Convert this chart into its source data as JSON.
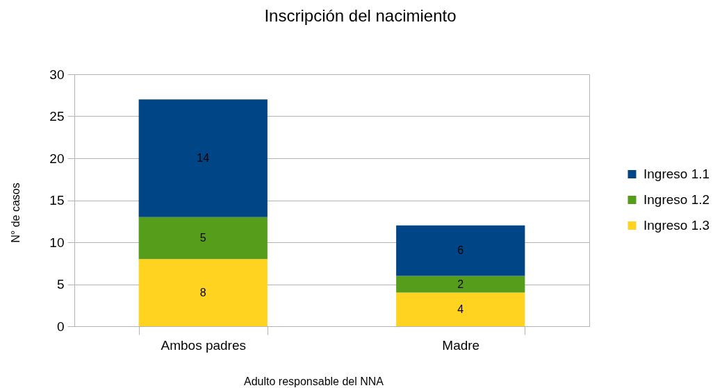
{
  "chart_data": {
    "type": "bar",
    "title": "Inscripción del nacimiento",
    "xlabel": "Adulto responsable del NNA",
    "ylabel": "N° de casos",
    "categories": [
      "Ambos padres",
      "Madre"
    ],
    "series": [
      {
        "name": "Ingreso 1.3",
        "color": "#ffd320",
        "values": [
          8,
          4
        ]
      },
      {
        "name": "Ingreso 1.2",
        "color": "#579d1c",
        "values": [
          5,
          2
        ]
      },
      {
        "name": "Ingreso 1.1",
        "color": "#004586",
        "values": [
          14,
          6
        ]
      }
    ],
    "stacked": true,
    "ylim": [
      0,
      30
    ],
    "yticks": [
      0,
      5,
      10,
      15,
      20,
      25,
      30
    ],
    "grid": "y",
    "legend": "right",
    "data_labels": true
  }
}
